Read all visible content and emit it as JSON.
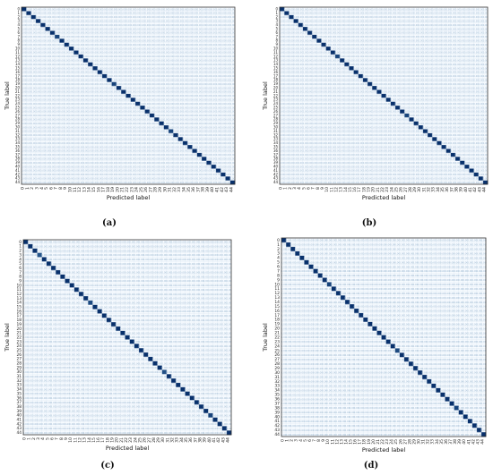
{
  "figure": {
    "panels": [
      {
        "caption": "(a)",
        "chart_data": {
          "type": "heatmap",
          "xlabel": "Predicted label",
          "ylabel": "True label",
          "n_classes": 45,
          "diagonal_value": 1.0,
          "off_diagonal_value": 0.0,
          "colormap": [
            "#f7fbff",
            "#08306b"
          ],
          "accent_cells": [
            {
              "row": 7,
              "col": 7,
              "value": 0.85
            },
            {
              "row": 19,
              "col": 19,
              "value": 0.85
            },
            {
              "row": 31,
              "col": 31,
              "value": 0.85
            }
          ]
        }
      },
      {
        "caption": "(b)",
        "chart_data": {
          "type": "heatmap",
          "xlabel": "Predicted label",
          "ylabel": "True label",
          "n_classes": 45,
          "diagonal_value": 1.0,
          "off_diagonal_value": 0.0,
          "colormap": [
            "#f7fbff",
            "#08306b"
          ],
          "accent_cells": [
            {
              "row": 12,
              "col": 12,
              "value": 0.85
            },
            {
              "row": 27,
              "col": 27,
              "value": 0.85
            }
          ]
        }
      },
      {
        "caption": "(c)",
        "chart_data": {
          "type": "heatmap",
          "xlabel": "Predicted label",
          "ylabel": "True label",
          "n_classes": 45,
          "diagonal_value": 1.0,
          "off_diagonal_value": 0.0,
          "colormap": [
            "#f7fbff",
            "#08306b"
          ],
          "accent_cells": [
            {
              "row": 3,
              "col": 3,
              "value": 0.7
            },
            {
              "row": 14,
              "col": 14,
              "value": 0.8
            },
            {
              "row": 30,
              "col": 30,
              "value": 0.75
            },
            {
              "row": 40,
              "col": 40,
              "value": 0.85
            }
          ]
        }
      },
      {
        "caption": "(d)",
        "chart_data": {
          "type": "heatmap",
          "xlabel": "Predicted label",
          "ylabel": "True label",
          "n_classes": 45,
          "diagonal_value": 1.0,
          "off_diagonal_value": 0.0,
          "colormap": [
            "#f7fbff",
            "#08306b"
          ],
          "accent_cells": [
            {
              "row": 10,
              "col": 10,
              "value": 0.85
            },
            {
              "row": 25,
              "col": 25,
              "value": 0.8
            },
            {
              "row": 38,
              "col": 38,
              "value": 0.85
            }
          ]
        }
      }
    ]
  }
}
